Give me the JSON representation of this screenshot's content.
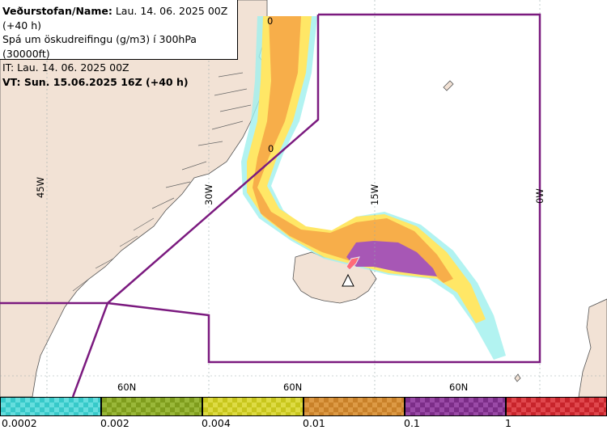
{
  "header": {
    "line1_bold": "Veðurstofan/Name:",
    "line1_rest": " Lau. 14. 06. 2025 00Z (+40 h)",
    "line2": "Spá um öskudreifingu (g/m3) í 300hPa (30000ft)",
    "line3": "IT: Lau. 14. 06. 2025 00Z",
    "line4": "VT: Sun. 15.06.2025 16Z (+40 h)"
  },
  "map": {
    "lon_labels": [
      "45W",
      "30W",
      "15W",
      "0W"
    ],
    "lat_labels": [
      "60N",
      "60N",
      "60N"
    ],
    "contour_labels": [
      "0",
      "0"
    ],
    "colors": {
      "land": "#f2e2d5",
      "sea": "#ffffff",
      "boundary": "#7b1a7f",
      "band_cyan": "#5fe0e0",
      "band_yellow": "#ffe766",
      "band_orange": "#f7ae4a",
      "band_purple": "#a757b5",
      "band_red": "#e83c45"
    }
  },
  "legend": {
    "items": [
      {
        "color": "#37c9c9",
        "alt": "#66dede"
      },
      {
        "color": "#7f9d1d",
        "alt": "#9ab83a"
      },
      {
        "color": "#c8c61c",
        "alt": "#dedb44"
      },
      {
        "color": "#c98129",
        "alt": "#dd9a45"
      },
      {
        "color": "#7c2d88",
        "alt": "#9a4aa7"
      },
      {
        "color": "#c8242b",
        "alt": "#e0474d"
      }
    ],
    "ticks": [
      "0.0002",
      "0.002",
      "0.004",
      "0.01",
      "0.1",
      "1"
    ]
  }
}
